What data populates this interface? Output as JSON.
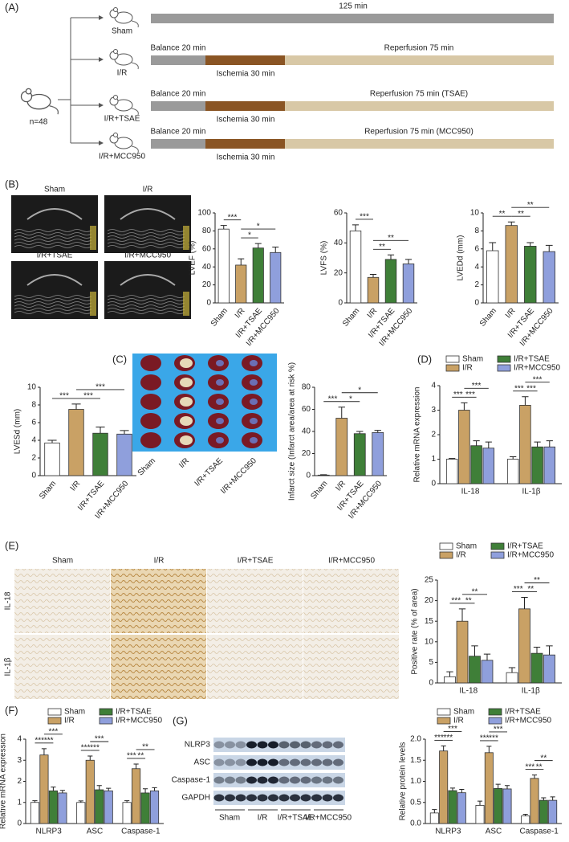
{
  "panel_labels": [
    "(A)",
    "(B)",
    "(C)",
    "(D)",
    "(E)",
    "(F)",
    "(G)"
  ],
  "protocol": {
    "total": "n=48",
    "groups": [
      {
        "name": "Sham",
        "duration": "125 min"
      },
      {
        "name": "I/R",
        "balance": "Balance 20 min",
        "ischemia": "Ischemia 30 min",
        "reperfusion": "Reperfusion 75 min"
      },
      {
        "name": "I/R+TSAE",
        "balance": "Balance 20 min",
        "ischemia": "Ischemia 30 min",
        "reperfusion": "Reperfusion 75 min (TSAE)"
      },
      {
        "name": "I/R+MCC950",
        "balance": "Balance 20 min",
        "ischemia": "Ischemia 30 min",
        "reperfusion": "Reperfusion 75 min (MCC950)"
      }
    ]
  },
  "echo": {
    "labels": [
      "Sham",
      "I/R",
      "I/R+TSAE",
      "I/R+MCC950"
    ]
  },
  "heart": {
    "labels": [
      "Sham",
      "I/R",
      "I/R+TSAE",
      "I/R+MCC950"
    ]
  },
  "ihc": {
    "columns": [
      "Sham",
      "I/R",
      "I/R+TSAE",
      "I/R+MCC950"
    ],
    "rows": [
      "IL-18",
      "IL-1β"
    ]
  },
  "blot": {
    "rows": [
      "NLRP3",
      "ASC",
      "Caspase-1",
      "GAPDH"
    ],
    "groups": [
      "Sham",
      "I/R",
      "I/R+TSAE",
      "I/R+MCC950"
    ]
  },
  "chart_data": [
    {
      "type": "bar",
      "ylabel": "LVEF (%)",
      "categories": [
        "Sham",
        "I/R",
        "I/R+TSAE",
        "I/R+MCC950"
      ],
      "colors": [
        "#ffffff",
        "#c9a165",
        "#3f7f38",
        "#8f9fdc"
      ],
      "values": [
        82,
        42,
        61,
        56
      ],
      "errors": [
        4,
        7,
        5,
        6
      ],
      "ylim": [
        0,
        100
      ],
      "yticks": [
        0,
        20,
        40,
        60,
        80,
        100
      ],
      "significance": [
        {
          "from": "Sham",
          "to": "I/R",
          "label": "***"
        },
        {
          "from": "I/R",
          "to": "I/R+TSAE",
          "label": "*"
        },
        {
          "from": "I/R",
          "to": "I/R+MCC950",
          "label": "*"
        }
      ]
    },
    {
      "type": "bar",
      "ylabel": "LVFS (%)",
      "categories": [
        "Sham",
        "I/R",
        "I/R+TSAE",
        "I/R+MCC950"
      ],
      "colors": [
        "#ffffff",
        "#c9a165",
        "#3f7f38",
        "#8f9fdc"
      ],
      "values": [
        48,
        17,
        29,
        26
      ],
      "errors": [
        4,
        2,
        3,
        3
      ],
      "ylim": [
        0,
        60
      ],
      "yticks": [
        0,
        20,
        40,
        60
      ],
      "significance": [
        {
          "from": "Sham",
          "to": "I/R",
          "label": "***"
        },
        {
          "from": "I/R",
          "to": "I/R+TSAE",
          "label": "**"
        },
        {
          "from": "I/R",
          "to": "I/R+MCC950",
          "label": "**"
        }
      ]
    },
    {
      "type": "bar",
      "ylabel": "LVEDd (mm)",
      "categories": [
        "Sham",
        "I/R",
        "I/R+TSAE",
        "I/R+MCC950"
      ],
      "colors": [
        "#ffffff",
        "#c9a165",
        "#3f7f38",
        "#8f9fdc"
      ],
      "values": [
        5.8,
        8.6,
        6.3,
        5.7
      ],
      "errors": [
        0.9,
        0.4,
        0.4,
        0.7
      ],
      "ylim": [
        0,
        10
      ],
      "yticks": [
        0,
        2,
        4,
        6,
        8,
        10
      ],
      "significance": [
        {
          "from": "Sham",
          "to": "I/R",
          "label": "**"
        },
        {
          "from": "I/R",
          "to": "I/R+TSAE",
          "label": "**"
        },
        {
          "from": "I/R",
          "to": "I/R+MCC950",
          "label": "**"
        }
      ]
    },
    {
      "type": "bar",
      "ylabel": "LVESd (mm)",
      "categories": [
        "Sham",
        "I/R",
        "I/R+TSAE",
        "I/R+MCC950"
      ],
      "colors": [
        "#ffffff",
        "#c9a165",
        "#3f7f38",
        "#8f9fdc"
      ],
      "values": [
        3.7,
        7.5,
        4.8,
        4.7
      ],
      "errors": [
        0.3,
        0.6,
        0.7,
        0.4
      ],
      "ylim": [
        0,
        10
      ],
      "yticks": [
        0,
        2,
        4,
        6,
        8,
        10
      ],
      "significance": [
        {
          "from": "Sham",
          "to": "I/R",
          "label": "***"
        },
        {
          "from": "I/R",
          "to": "I/R+TSAE",
          "label": "***"
        },
        {
          "from": "I/R",
          "to": "I/R+MCC950",
          "label": "***"
        }
      ]
    },
    {
      "type": "bar",
      "ylabel": "Infarct size (Infarct area/area at risk %)",
      "categories": [
        "Sham",
        "I/R",
        "I/R+TSAE",
        "I/R+MCC950"
      ],
      "colors": [
        "#ffffff",
        "#c9a165",
        "#3f7f38",
        "#8f9fdc"
      ],
      "values": [
        0.5,
        52,
        38,
        39
      ],
      "errors": [
        0.3,
        10,
        2,
        2
      ],
      "ylim": [
        0,
        80
      ],
      "yticks": [
        0,
        20,
        40,
        60,
        80
      ],
      "significance": [
        {
          "from": "Sham",
          "to": "I/R",
          "label": "***"
        },
        {
          "from": "I/R",
          "to": "I/R+TSAE",
          "label": "*"
        },
        {
          "from": "I/R",
          "to": "I/R+MCC950",
          "label": "*"
        }
      ]
    },
    {
      "type": "bar",
      "ylabel": "Relative mRNA expression",
      "categories": [
        "IL-18",
        "IL-1β"
      ],
      "series": [
        {
          "name": "Sham",
          "color": "#ffffff",
          "values": [
            1.0,
            1.0
          ],
          "errors": [
            0.03,
            0.1
          ]
        },
        {
          "name": "I/R",
          "color": "#c9a165",
          "values": [
            3.0,
            3.2
          ],
          "errors": [
            0.3,
            0.35
          ]
        },
        {
          "name": "I/R+TSAE",
          "color": "#3f7f38",
          "values": [
            1.55,
            1.5
          ],
          "errors": [
            0.2,
            0.2
          ]
        },
        {
          "name": "I/R+MCC950",
          "color": "#8f9fdc",
          "values": [
            1.45,
            1.5
          ],
          "errors": [
            0.25,
            0.25
          ]
        }
      ],
      "ylim": [
        0,
        4
      ],
      "yticks": [
        0,
        1,
        2,
        3,
        4
      ],
      "significance": [
        {
          "group": "IL-18",
          "from": "Sham",
          "to": "I/R",
          "label": "***"
        },
        {
          "group": "IL-18",
          "from": "I/R",
          "to": "I/R+TSAE",
          "label": "***"
        },
        {
          "group": "IL-18",
          "from": "I/R",
          "to": "I/R+MCC950",
          "label": "***"
        },
        {
          "group": "IL-1β",
          "from": "Sham",
          "to": "I/R",
          "label": "***"
        },
        {
          "group": "IL-1β",
          "from": "I/R",
          "to": "I/R+TSAE",
          "label": "***"
        },
        {
          "group": "IL-1β",
          "from": "I/R",
          "to": "I/R+MCC950",
          "label": "***"
        }
      ]
    },
    {
      "type": "bar",
      "ylabel": "Positive rate (% of area)",
      "categories": [
        "IL-18",
        "IL-1β"
      ],
      "series": [
        {
          "name": "Sham",
          "color": "#ffffff",
          "values": [
            1.5,
            2.5
          ],
          "errors": [
            1.2,
            1.2
          ]
        },
        {
          "name": "I/R",
          "color": "#c9a165",
          "values": [
            15,
            18
          ],
          "errors": [
            3,
            2.8
          ]
        },
        {
          "name": "I/R+TSAE",
          "color": "#3f7f38",
          "values": [
            6.5,
            7.2
          ],
          "errors": [
            2.5,
            1.5
          ]
        },
        {
          "name": "I/R+MCC950",
          "color": "#8f9fdc",
          "values": [
            5.5,
            6.8
          ],
          "errors": [
            1.5,
            2.2
          ]
        }
      ],
      "ylim": [
        0,
        25
      ],
      "yticks": [
        0,
        5,
        10,
        15,
        20,
        25
      ],
      "significance": [
        {
          "group": "IL-18",
          "from": "Sham",
          "to": "I/R",
          "label": "***"
        },
        {
          "group": "IL-18",
          "from": "I/R",
          "to": "I/R+TSAE",
          "label": "**"
        },
        {
          "group": "IL-18",
          "from": "I/R",
          "to": "I/R+MCC950",
          "label": "**"
        },
        {
          "group": "IL-1β",
          "from": "Sham",
          "to": "I/R",
          "label": "***"
        },
        {
          "group": "IL-1β",
          "from": "I/R",
          "to": "I/R+TSAE",
          "label": "**"
        },
        {
          "group": "IL-1β",
          "from": "I/R",
          "to": "I/R+MCC950",
          "label": "**"
        }
      ]
    },
    {
      "type": "bar",
      "ylabel": "Relative mRNA expression",
      "categories": [
        "NLRP3",
        "ASC",
        "Caspase-1"
      ],
      "series": [
        {
          "name": "Sham",
          "color": "#ffffff",
          "values": [
            1.0,
            1.0,
            1.0
          ],
          "errors": [
            0.08,
            0.07,
            0.08
          ]
        },
        {
          "name": "I/R",
          "color": "#c9a165",
          "values": [
            3.25,
            3.0,
            2.6
          ],
          "errors": [
            0.3,
            0.2,
            0.22
          ]
        },
        {
          "name": "I/R+TSAE",
          "color": "#3f7f38",
          "values": [
            1.55,
            1.6,
            1.45
          ],
          "errors": [
            0.18,
            0.2,
            0.2
          ]
        },
        {
          "name": "I/R+MCC950",
          "color": "#8f9fdc",
          "values": [
            1.45,
            1.55,
            1.55
          ],
          "errors": [
            0.12,
            0.12,
            0.15
          ]
        }
      ],
      "ylim": [
        0,
        4
      ],
      "yticks": [
        0,
        1,
        2,
        3,
        4
      ],
      "significance": [
        {
          "group": "NLRP3",
          "from": "Sham",
          "to": "I/R",
          "label": "***"
        },
        {
          "group": "NLRP3",
          "from": "I/R",
          "to": "I/R+TSAE",
          "label": "***"
        },
        {
          "group": "NLRP3",
          "from": "I/R",
          "to": "I/R+MCC950",
          "label": "***"
        },
        {
          "group": "ASC",
          "from": "Sham",
          "to": "I/R",
          "label": "***"
        },
        {
          "group": "ASC",
          "from": "I/R",
          "to": "I/R+TSAE",
          "label": "***"
        },
        {
          "group": "ASC",
          "from": "I/R",
          "to": "I/R+MCC950",
          "label": "***"
        },
        {
          "group": "Caspase-1",
          "from": "Sham",
          "to": "I/R",
          "label": "***"
        },
        {
          "group": "Caspase-1",
          "from": "I/R",
          "to": "I/R+TSAE",
          "label": "**"
        },
        {
          "group": "Caspase-1",
          "from": "I/R",
          "to": "I/R+MCC950",
          "label": "**"
        }
      ]
    },
    {
      "type": "bar",
      "ylabel": "Relative protein levels",
      "categories": [
        "NLRP3",
        "ASC",
        "Caspase-1"
      ],
      "series": [
        {
          "name": "Sham",
          "color": "#ffffff",
          "values": [
            0.25,
            0.43,
            0.18
          ],
          "errors": [
            0.08,
            0.1,
            0.04
          ]
        },
        {
          "name": "I/R",
          "color": "#c9a165",
          "values": [
            1.72,
            1.68,
            1.07
          ],
          "errors": [
            0.12,
            0.15,
            0.08
          ]
        },
        {
          "name": "I/R+TSAE",
          "color": "#3f7f38",
          "values": [
            0.78,
            0.83,
            0.55
          ],
          "errors": [
            0.06,
            0.1,
            0.06
          ]
        },
        {
          "name": "I/R+MCC950",
          "color": "#8f9fdc",
          "values": [
            0.73,
            0.82,
            0.55
          ],
          "errors": [
            0.08,
            0.08,
            0.08
          ]
        }
      ],
      "ylim": [
        0,
        2.0
      ],
      "yticks": [
        {
          "value": 0,
          "label": "0.0"
        },
        0.5,
        {
          "value": 1,
          "label": "1.0"
        },
        1.5,
        {
          "value": 2,
          "label": "2.0"
        }
      ],
      "significance": [
        {
          "group": "NLRP3",
          "from": "Sham",
          "to": "I/R",
          "label": "***"
        },
        {
          "group": "NLRP3",
          "from": "I/R",
          "to": "I/R+TSAE",
          "label": "***"
        },
        {
          "group": "NLRP3",
          "from": "I/R",
          "to": "I/R+MCC950",
          "label": "***"
        },
        {
          "group": "ASC",
          "from": "Sham",
          "to": "I/R",
          "label": "***"
        },
        {
          "group": "ASC",
          "from": "I/R",
          "to": "I/R+TSAE",
          "label": "***"
        },
        {
          "group": "ASC",
          "from": "I/R",
          "to": "I/R+MCC950",
          "label": "***"
        },
        {
          "group": "Caspase-1",
          "from": "Sham",
          "to": "I/R",
          "label": "***"
        },
        {
          "group": "Caspase-1",
          "from": "I/R",
          "to": "I/R+TSAE",
          "label": "**"
        },
        {
          "group": "Caspase-1",
          "from": "I/R",
          "to": "I/R+MCC950",
          "label": "**"
        }
      ]
    }
  ]
}
